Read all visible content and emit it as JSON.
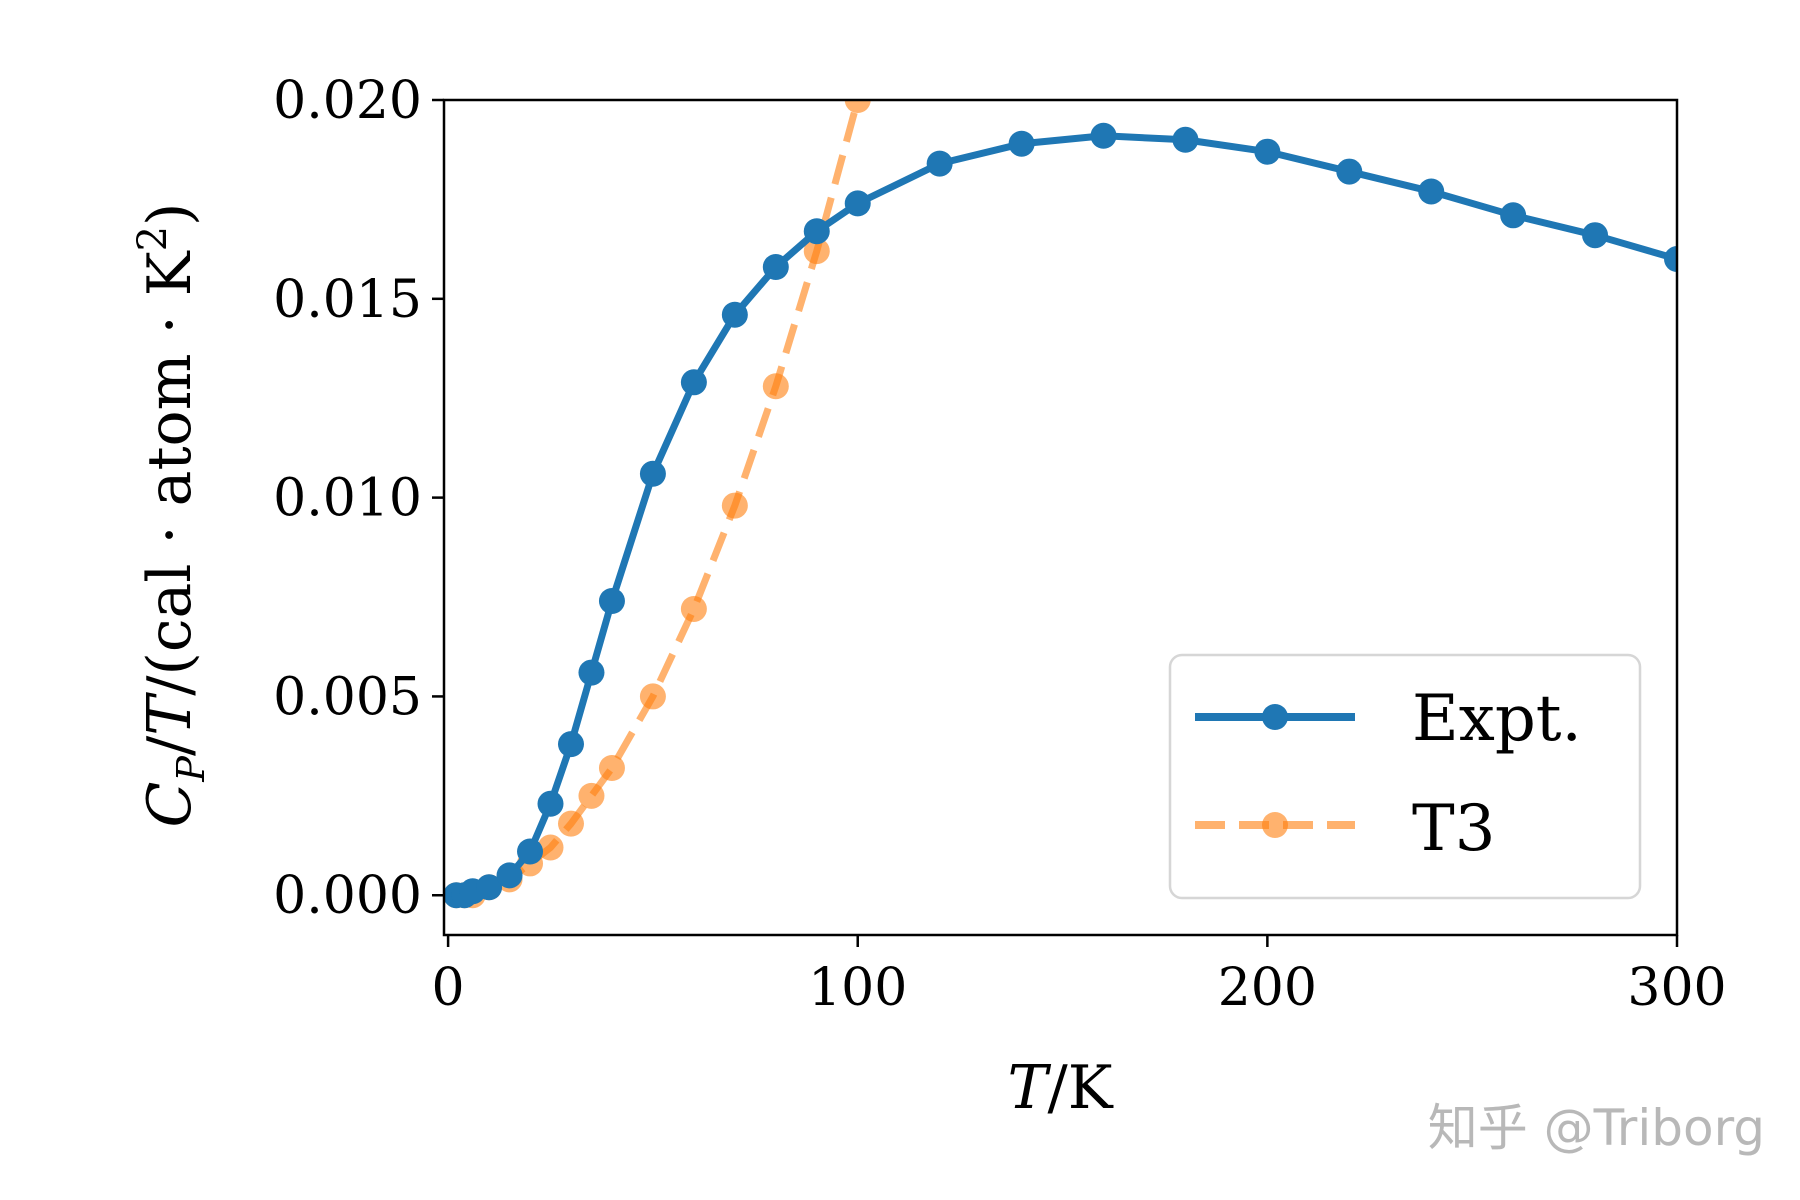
{
  "chart_data": {
    "type": "line",
    "xlabel": "T/K",
    "ylabel": "C_P/T/(cal·atom·K²)",
    "xlim": [
      -1,
      300
    ],
    "ylim": [
      -0.001,
      0.02
    ],
    "x_ticks": [
      "0",
      "100",
      "200",
      "300"
    ],
    "x_tick_values": [
      0,
      100,
      200,
      300
    ],
    "y_ticks": [
      "0.000",
      "0.005",
      "0.010",
      "0.015",
      "0.020"
    ],
    "y_tick_values": [
      0.0,
      0.005,
      0.01,
      0.015,
      0.02
    ],
    "legend_position": "lower-right",
    "grid": false,
    "series": [
      {
        "name": "Expt.",
        "color": "#1f77b4",
        "style": "solid",
        "x": [
          2,
          4,
          6,
          10,
          15,
          20,
          25,
          30,
          35,
          40,
          50,
          60,
          70,
          80,
          90,
          100,
          120,
          140,
          160,
          180,
          200,
          220,
          240,
          260,
          280,
          300
        ],
        "y": [
          0.0,
          0.0,
          0.0001,
          0.0002,
          0.0005,
          0.0011,
          0.0023,
          0.0038,
          0.0056,
          0.0074,
          0.0106,
          0.0129,
          0.0146,
          0.0158,
          0.0167,
          0.0174,
          0.0184,
          0.0189,
          0.0191,
          0.019,
          0.0187,
          0.0182,
          0.0177,
          0.0171,
          0.0166,
          0.016
        ]
      },
      {
        "name": "T3",
        "color": "#ff7f0e",
        "style": "dashed",
        "x": [
          2,
          4,
          6,
          10,
          15,
          20,
          25,
          30,
          35,
          40,
          50,
          60,
          70,
          80,
          90,
          100
        ],
        "y": [
          0.0,
          0.0,
          0.0,
          0.0002,
          0.0004,
          0.0008,
          0.0012,
          0.0018,
          0.0025,
          0.0032,
          0.005,
          0.0072,
          0.0098,
          0.0128,
          0.0162,
          0.02
        ]
      }
    ]
  },
  "watermark": "知乎 @Triborg"
}
